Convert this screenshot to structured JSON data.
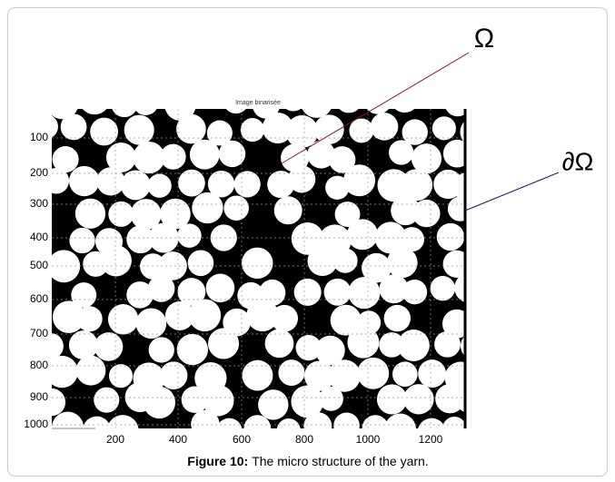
{
  "figure": {
    "image_title": "Image binarisée",
    "y_tick_labels": [
      "100",
      "200",
      "300",
      "400",
      "500",
      "600",
      "700",
      "800",
      "900",
      "1000"
    ],
    "x_tick_labels": [
      "200",
      "400",
      "600",
      "800",
      "1000",
      "1200"
    ],
    "annotations": {
      "domain": "Ω",
      "boundary": "∂Ω"
    },
    "caption": {
      "label": "Figure 10:",
      "text": "The micro structure of the yarn."
    }
  }
}
